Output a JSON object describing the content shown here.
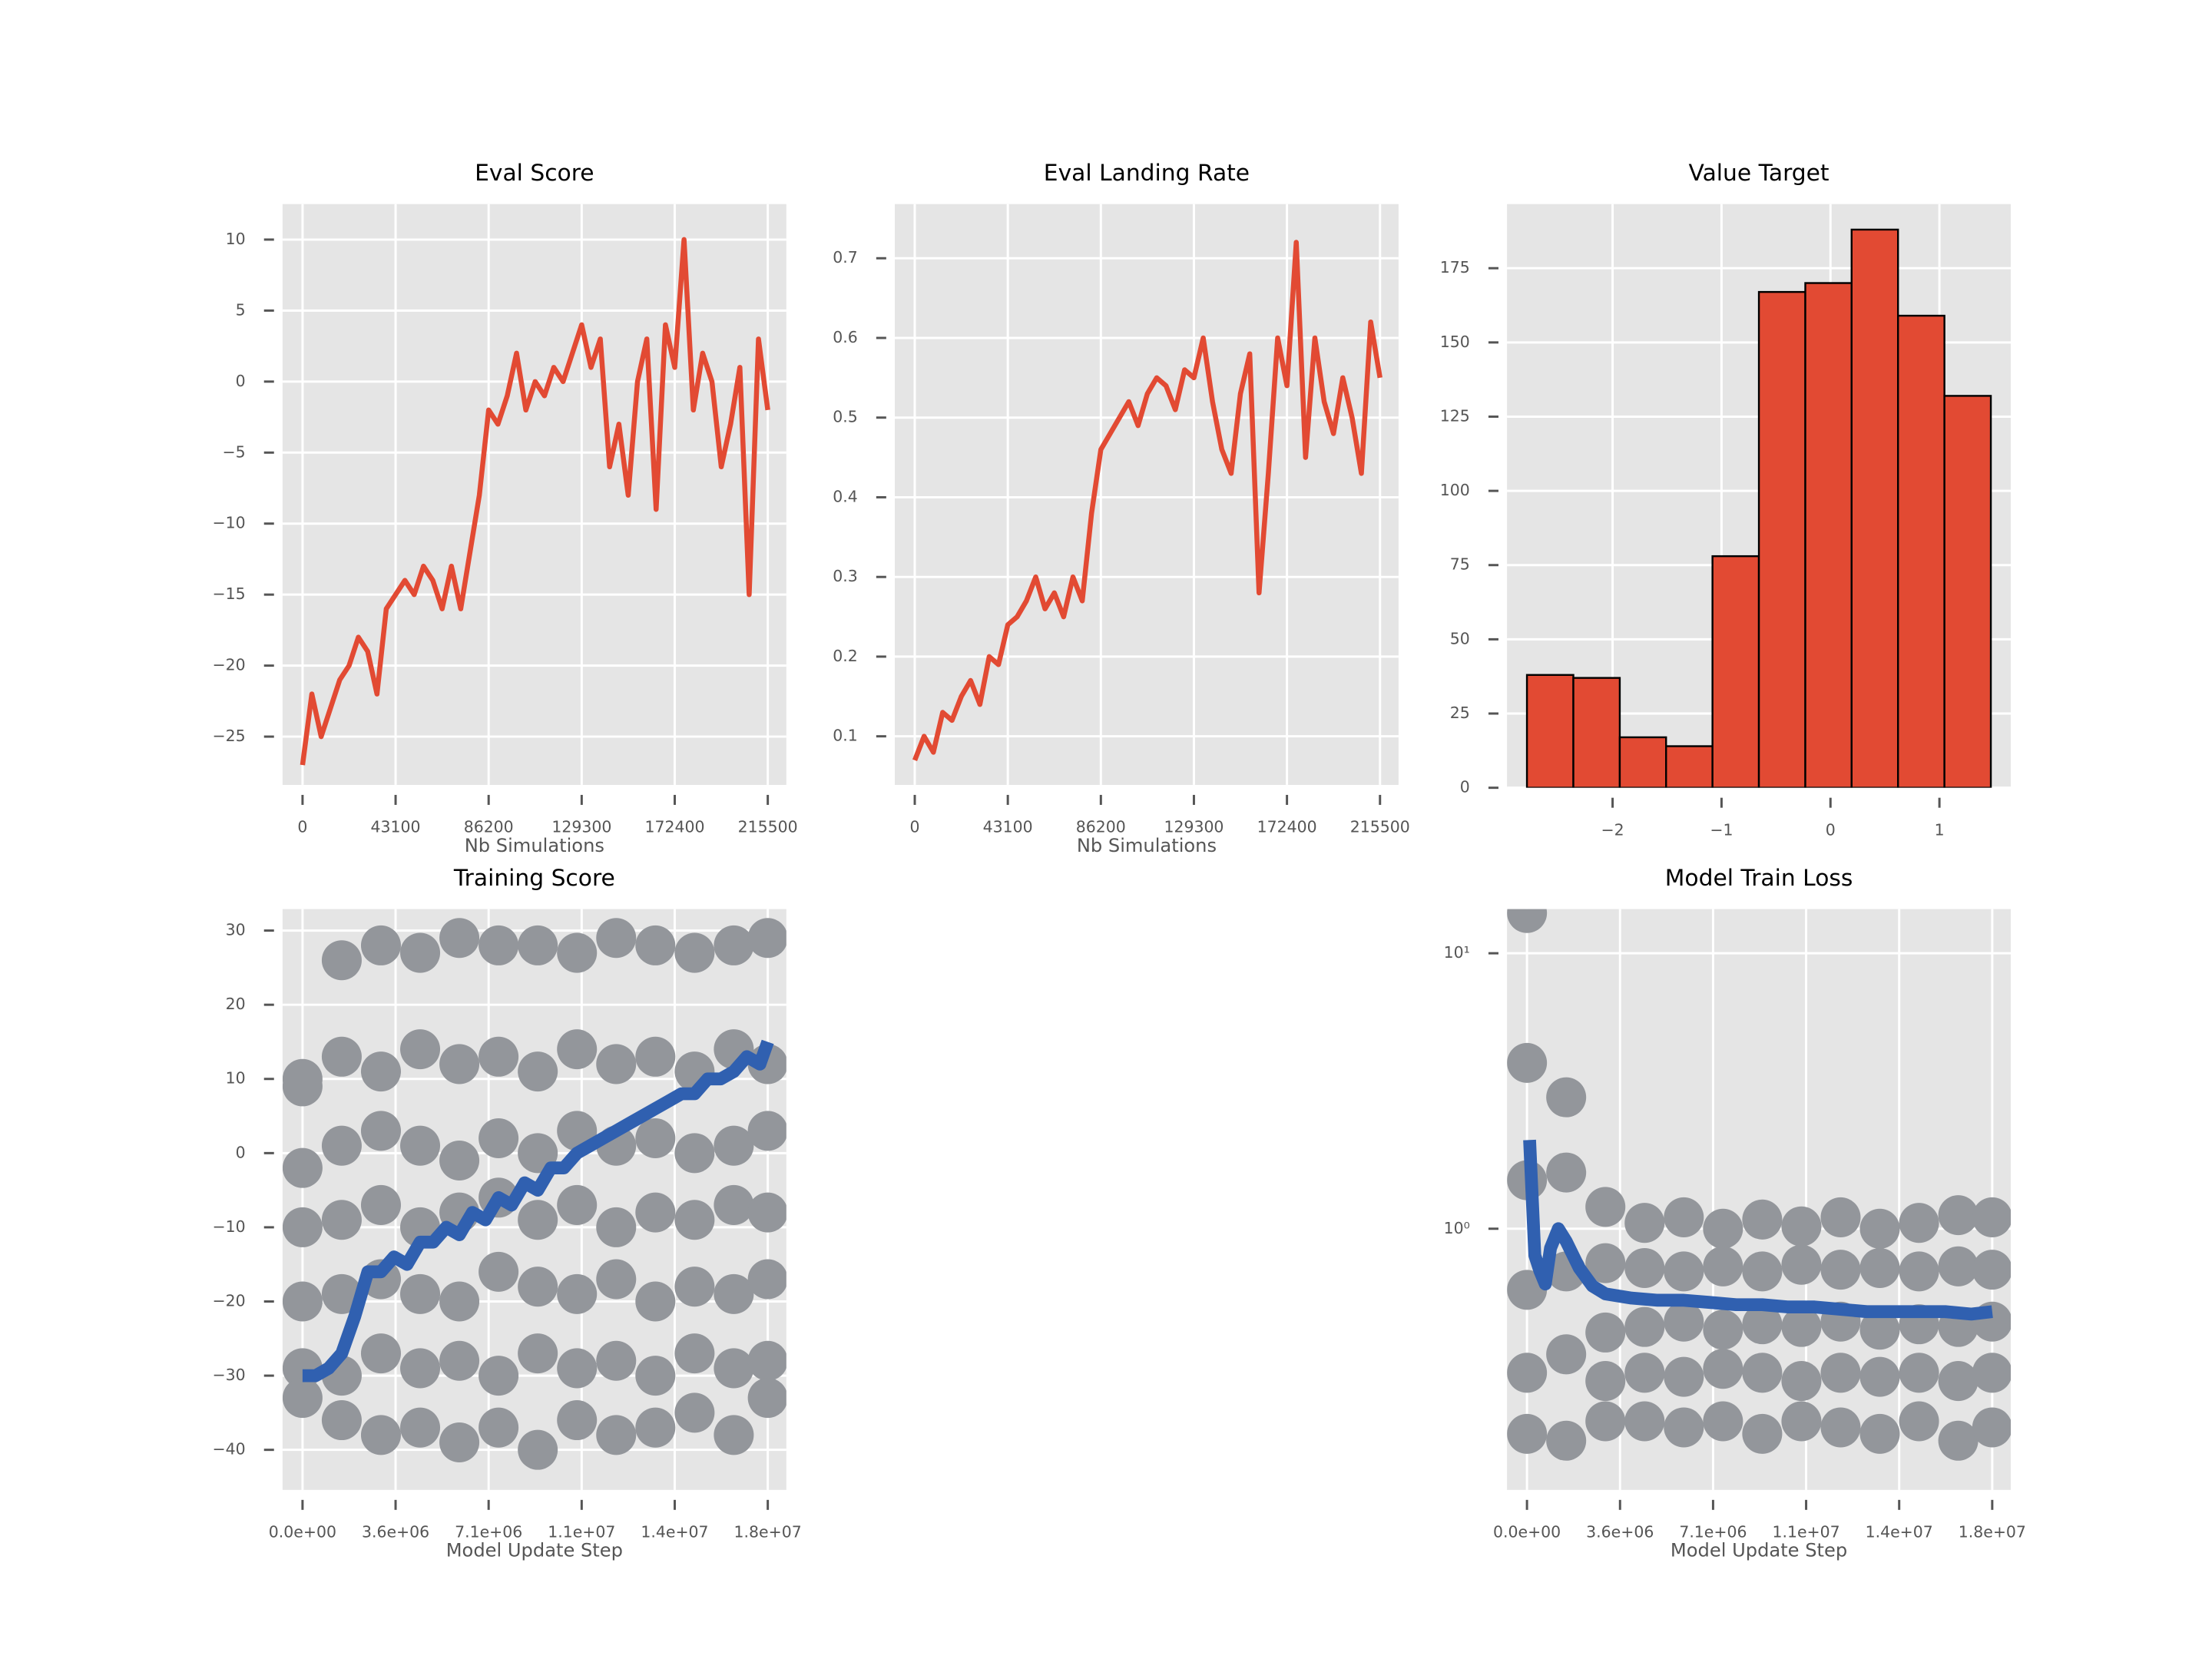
{
  "chart_data": [
    {
      "type": "line",
      "title": "Eval Score",
      "xlabel": "Nb Simulations",
      "x": [
        0,
        4310,
        8620,
        12930,
        17240,
        21550,
        25860,
        30170,
        34480,
        38790,
        43100,
        47410,
        51720,
        56030,
        60340,
        64650,
        68960,
        73270,
        77580,
        81890,
        86200,
        90510,
        94820,
        99130,
        103440,
        107750,
        112060,
        116370,
        120680,
        124990,
        129300,
        133610,
        137920,
        142230,
        146540,
        150850,
        155160,
        159470,
        163780,
        168090,
        172400,
        176710,
        181020,
        185330,
        189640,
        193950,
        198260,
        202570,
        206880,
        211190,
        215500
      ],
      "series": [
        {
          "color": "#E24A33",
          "values": [
            -27,
            -22,
            -25,
            -23,
            -21,
            -20,
            -18,
            -19,
            -22,
            -16,
            -15,
            -14,
            -15,
            -13,
            -14,
            -16,
            -13,
            -16,
            -12,
            -8,
            -2,
            -3,
            -1,
            2,
            -2,
            0,
            -1,
            1,
            0,
            2,
            4,
            1,
            3,
            -6,
            -3,
            -8,
            0,
            3,
            -9,
            4,
            1,
            10,
            -2,
            2,
            0,
            -6,
            -3,
            1,
            -15,
            3,
            -2
          ]
        }
      ],
      "xlim": [
        -9255,
        224093
      ],
      "ylim": [
        -28.4,
        12.5
      ],
      "xticks": [
        0,
        43100,
        86200,
        129300,
        172400,
        215500
      ],
      "yticks": [
        {
          "value": -25,
          "label": "−25"
        },
        {
          "value": -20,
          "label": "−20"
        },
        {
          "value": -15,
          "label": "−15"
        },
        {
          "value": -10,
          "label": "−10"
        },
        {
          "value": -5,
          "label": "−5"
        },
        0,
        5,
        10
      ],
      "grid": true
    },
    {
      "type": "line",
      "title": "Eval Landing Rate",
      "xlabel": "Nb Simulations",
      "x": [
        0,
        4310,
        8620,
        12930,
        17240,
        21550,
        25860,
        30170,
        34480,
        38790,
        43100,
        47410,
        51720,
        56030,
        60340,
        64650,
        68960,
        73270,
        77580,
        81890,
        86200,
        90510,
        94820,
        99130,
        103440,
        107750,
        112060,
        116370,
        120680,
        124990,
        129300,
        133610,
        137920,
        142230,
        146540,
        150850,
        155160,
        159470,
        163780,
        168090,
        172400,
        176710,
        181020,
        185330,
        189640,
        193950,
        198260,
        202570,
        206880,
        211190,
        215500
      ],
      "series": [
        {
          "color": "#E24A33",
          "values": [
            0.07,
            0.1,
            0.08,
            0.13,
            0.12,
            0.15,
            0.17,
            0.14,
            0.2,
            0.19,
            0.24,
            0.25,
            0.27,
            0.3,
            0.26,
            0.28,
            0.25,
            0.3,
            0.27,
            0.38,
            0.46,
            0.48,
            0.5,
            0.52,
            0.49,
            0.53,
            0.55,
            0.54,
            0.51,
            0.56,
            0.55,
            0.6,
            0.52,
            0.46,
            0.43,
            0.53,
            0.58,
            0.28,
            0.43,
            0.6,
            0.54,
            0.72,
            0.45,
            0.6,
            0.52,
            0.48,
            0.55,
            0.5,
            0.43,
            0.62,
            0.55
          ]
        }
      ],
      "xlim": [
        -9255,
        224093
      ],
      "ylim": [
        0.039,
        0.768
      ],
      "xticks": [
        0,
        43100,
        86200,
        129300,
        172400,
        215500
      ],
      "yticks": [
        0.1,
        0.2,
        0.3,
        0.4,
        0.5,
        0.6,
        0.7
      ],
      "grid": true
    },
    {
      "type": "histogram",
      "title": "Value Target",
      "bins": [
        -2.786,
        -2.36,
        -1.934,
        -1.509,
        -1.083,
        -0.657,
        -0.231,
        0.194,
        0.62,
        1.046,
        1.472
      ],
      "values": [
        38,
        37,
        17,
        14,
        78,
        167,
        170,
        188,
        159,
        132
      ],
      "color": "#E24A33",
      "edgecolor": "#000000",
      "xlim": [
        -2.969,
        1.655
      ],
      "ylim": [
        0,
        196.6
      ],
      "xticks": [
        {
          "value": -2,
          "label": "−2"
        },
        {
          "value": -1,
          "label": "−1"
        },
        0,
        1
      ],
      "yticks": [
        0,
        25,
        50,
        75,
        100,
        125,
        150,
        175
      ],
      "grid": true
    },
    {
      "type": "scatter",
      "title": "Training Score",
      "xlabel": "Model Update Step",
      "series": [
        {
          "kind": "scatter",
          "color": "#93969B",
          "x": [
            0,
            0,
            0,
            0,
            0,
            0,
            0,
            1500000,
            1500000,
            1500000,
            1500000,
            1500000,
            1500000,
            1500000,
            3000000,
            3000000,
            3000000,
            3000000,
            3000000,
            3000000,
            3000000,
            4500000,
            4500000,
            4500000,
            4500000,
            4500000,
            4500000,
            4500000,
            6000000,
            6000000,
            6000000,
            6000000,
            6000000,
            6000000,
            6000000,
            7500000,
            7500000,
            7500000,
            7500000,
            7500000,
            7500000,
            7500000,
            9000000,
            9000000,
            9000000,
            9000000,
            9000000,
            9000000,
            9000000,
            10500000,
            10500000,
            10500000,
            10500000,
            10500000,
            10500000,
            10500000,
            12000000,
            12000000,
            12000000,
            12000000,
            12000000,
            12000000,
            12000000,
            13500000,
            13500000,
            13500000,
            13500000,
            13500000,
            13500000,
            13500000,
            15000000,
            15000000,
            15000000,
            15000000,
            15000000,
            15000000,
            15000000,
            16500000,
            16500000,
            16500000,
            16500000,
            16500000,
            16500000,
            16500000,
            17800000,
            17800000,
            17800000,
            17800000,
            17800000,
            17800000,
            17800000
          ],
          "values": [
            9,
            10,
            -2,
            -10,
            -20,
            -29,
            -33,
            26,
            13,
            1,
            -9,
            -19,
            -30,
            -36,
            28,
            11,
            3,
            -7,
            -17,
            -27,
            -38,
            27,
            14,
            1,
            -10,
            -19,
            -29,
            -37,
            29,
            12,
            -1,
            -8,
            -20,
            -28,
            -39,
            28,
            13,
            2,
            -6,
            -16,
            -30,
            -37,
            28,
            11,
            0,
            -9,
            -18,
            -27,
            -40,
            27,
            14,
            3,
            -7,
            -19,
            -29,
            -36,
            29,
            12,
            1,
            -10,
            -17,
            -28,
            -38,
            28,
            13,
            2,
            -8,
            -20,
            -30,
            -37,
            27,
            11,
            0,
            -9,
            -18,
            -27,
            -35,
            28,
            14,
            1,
            -7,
            -19,
            -29,
            -38,
            29,
            12,
            3,
            -8,
            -17,
            -28,
            -33
          ]
        },
        {
          "kind": "line",
          "color": "#3060B0",
          "x": [
            0,
            500000,
            1000000,
            1500000,
            2000000,
            2500000,
            3000000,
            3500000,
            4000000,
            4500000,
            5000000,
            5500000,
            6000000,
            6500000,
            7000000,
            7500000,
            8000000,
            8500000,
            9000000,
            9500000,
            10000000,
            10500000,
            11000000,
            11500000,
            12000000,
            12500000,
            13000000,
            13500000,
            14000000,
            14500000,
            15000000,
            15500000,
            16000000,
            16500000,
            17000000,
            17500000,
            17800000
          ],
          "values": [
            -30,
            -30,
            -29,
            -27,
            -22,
            -16,
            -16,
            -14,
            -15,
            -12,
            -12,
            -10,
            -11,
            -8,
            -9,
            -6,
            -7,
            -4,
            -5,
            -2,
            -2,
            0,
            1,
            2,
            3,
            4,
            5,
            6,
            7,
            8,
            8,
            10,
            10,
            11,
            13,
            12,
            15
          ]
        }
      ],
      "xlim": [
        -764000,
        18510000
      ],
      "ylim": [
        -45.4,
        32.9
      ],
      "xticks": [
        {
          "value": 0,
          "label": "0.0e+00"
        },
        {
          "value": 3560000,
          "label": "3.6e+06"
        },
        {
          "value": 7120000,
          "label": "7.1e+06"
        },
        {
          "value": 10680000,
          "label": "1.1e+07"
        },
        {
          "value": 14240000,
          "label": "1.4e+07"
        },
        {
          "value": 17800000,
          "label": "1.8e+07"
        }
      ],
      "yticks": [
        {
          "value": -40,
          "label": "−40"
        },
        {
          "value": -30,
          "label": "−30"
        },
        {
          "value": -20,
          "label": "−20"
        },
        {
          "value": -10,
          "label": "−10"
        },
        0,
        10,
        20,
        30
      ],
      "grid": true
    },
    {
      "type": "scatter",
      "title": "Model Train Loss",
      "xlabel": "Model Update Step",
      "yscale": "log",
      "series": [
        {
          "kind": "scatter",
          "color": "#93969B",
          "x": [
            0,
            0,
            0,
            0,
            0,
            0,
            1500000,
            1500000,
            1500000,
            1500000,
            1500000,
            3000000,
            3000000,
            3000000,
            3000000,
            3000000,
            4500000,
            4500000,
            4500000,
            4500000,
            4500000,
            6000000,
            6000000,
            6000000,
            6000000,
            6000000,
            7500000,
            7500000,
            7500000,
            7500000,
            7500000,
            9000000,
            9000000,
            9000000,
            9000000,
            9000000,
            10500000,
            10500000,
            10500000,
            10500000,
            10500000,
            12000000,
            12000000,
            12000000,
            12000000,
            12000000,
            13500000,
            13500000,
            13500000,
            13500000,
            13500000,
            15000000,
            15000000,
            15000000,
            15000000,
            15000000,
            16500000,
            16500000,
            16500000,
            16500000,
            16500000,
            17800000,
            17800000,
            17800000,
            17800000,
            17800000
          ],
          "values": [
            14,
            4,
            1.5,
            0.6,
            0.3,
            0.18,
            3,
            1.6,
            0.7,
            0.35,
            0.17,
            1.2,
            0.75,
            0.42,
            0.28,
            0.2,
            1.05,
            0.72,
            0.44,
            0.3,
            0.2,
            1.1,
            0.7,
            0.46,
            0.29,
            0.19,
            1.0,
            0.73,
            0.43,
            0.31,
            0.2,
            1.08,
            0.7,
            0.45,
            0.3,
            0.18,
            1.02,
            0.74,
            0.44,
            0.28,
            0.2,
            1.1,
            0.71,
            0.46,
            0.3,
            0.19,
            1.0,
            0.72,
            0.43,
            0.29,
            0.18,
            1.05,
            0.7,
            0.45,
            0.3,
            0.2,
            1.12,
            0.73,
            0.44,
            0.28,
            0.17,
            1.1,
            0.71,
            0.46,
            0.3,
            0.19
          ]
        },
        {
          "kind": "line",
          "color": "#3060B0",
          "x": [
            100000,
            300000,
            500000,
            700000,
            900000,
            1200000,
            1500000,
            2000000,
            2500000,
            3000000,
            4000000,
            5000000,
            6000000,
            7000000,
            8000000,
            9000000,
            10000000,
            11000000,
            12000000,
            13000000,
            14000000,
            15000000,
            16000000,
            17000000,
            17800000
          ],
          "values": [
            2.1,
            0.8,
            0.7,
            0.63,
            0.85,
            1.0,
            0.9,
            0.72,
            0.62,
            0.58,
            0.56,
            0.55,
            0.55,
            0.54,
            0.53,
            0.53,
            0.52,
            0.52,
            0.51,
            0.5,
            0.5,
            0.5,
            0.5,
            0.49,
            0.5
          ]
        }
      ],
      "xlim": [
        -764000,
        18510000
      ],
      "ylim": [
        0.1127,
        14.47
      ],
      "xticks": [
        {
          "value": 0,
          "label": "0.0e+00"
        },
        {
          "value": 3560000,
          "label": "3.6e+06"
        },
        {
          "value": 7120000,
          "label": "7.1e+06"
        },
        {
          "value": 10680000,
          "label": "1.1e+07"
        },
        {
          "value": 14240000,
          "label": "1.4e+07"
        },
        {
          "value": 17800000,
          "label": "1.8e+07"
        }
      ],
      "yticks": [
        {
          "value": 1,
          "label": "10⁰"
        },
        {
          "value": 10,
          "label": "10¹"
        }
      ],
      "grid": true
    }
  ]
}
